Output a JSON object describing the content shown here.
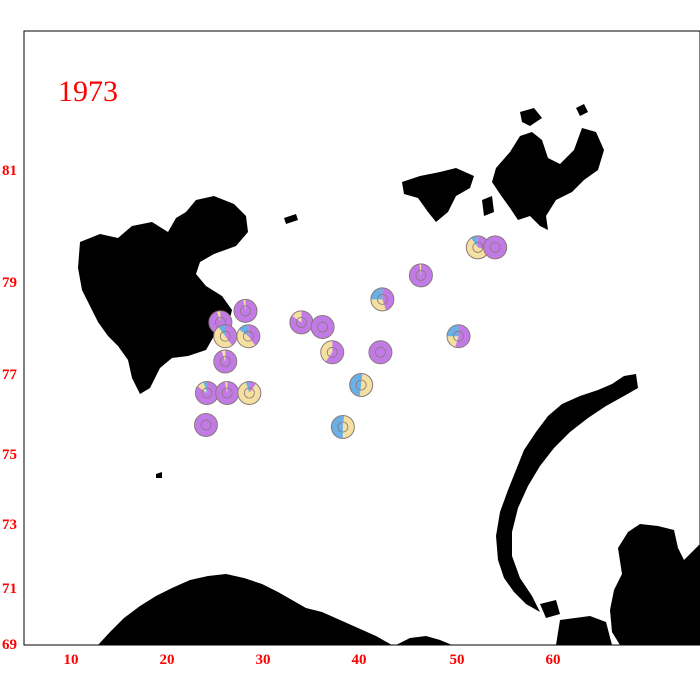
{
  "map": {
    "year": "1973",
    "colors": {
      "frame": "#000000",
      "land": "#000000",
      "label": "#ff0000",
      "purple": "#c27be6",
      "tan": "#f4e0a0",
      "blue": "#6ab0e6",
      "pie_outline": "#8a7a7a"
    },
    "x_ticks": [
      "10",
      "20",
      "30",
      "40",
      "50",
      "60"
    ],
    "y_ticks": [
      "81",
      "79",
      "77",
      "75",
      "73",
      "71",
      "69"
    ],
    "stations": [
      {
        "lon": 52.2,
        "lat": 79.6,
        "purple": 0.3,
        "tan": 0.6,
        "blue": 0.1
      },
      {
        "lon": 54.0,
        "lat": 79.6,
        "purple": 1.0,
        "tan": 0.0,
        "blue": 0.0
      },
      {
        "lon": 46.3,
        "lat": 79.1,
        "purple": 0.98,
        "tan": 0.02,
        "blue": 0.0
      },
      {
        "lon": 42.3,
        "lat": 78.6,
        "purple": 0.45,
        "tan": 0.3,
        "blue": 0.25
      },
      {
        "lon": 28.1,
        "lat": 78.35,
        "purple": 0.97,
        "tan": 0.03,
        "blue": 0.0
      },
      {
        "lon": 25.5,
        "lat": 78.1,
        "purple": 0.95,
        "tan": 0.05,
        "blue": 0.0
      },
      {
        "lon": 33.9,
        "lat": 78.1,
        "purple": 0.85,
        "tan": 0.15,
        "blue": 0.0
      },
      {
        "lon": 36.1,
        "lat": 78.0,
        "purple": 1.0,
        "tan": 0.0,
        "blue": 0.0
      },
      {
        "lon": 26.0,
        "lat": 77.8,
        "purple": 0.4,
        "tan": 0.5,
        "blue": 0.1
      },
      {
        "lon": 28.4,
        "lat": 77.8,
        "purple": 0.4,
        "tan": 0.45,
        "blue": 0.15
      },
      {
        "lon": 50.2,
        "lat": 77.8,
        "purple": 0.55,
        "tan": 0.2,
        "blue": 0.25
      },
      {
        "lon": 37.1,
        "lat": 77.45,
        "purple": 0.6,
        "tan": 0.4,
        "blue": 0.0
      },
      {
        "lon": 42.1,
        "lat": 77.45,
        "purple": 1.0,
        "tan": 0.0,
        "blue": 0.0
      },
      {
        "lon": 26.0,
        "lat": 77.25,
        "purple": 0.95,
        "tan": 0.05,
        "blue": 0.0
      },
      {
        "lon": 40.1,
        "lat": 76.7,
        "purple": 0.02,
        "tan": 0.5,
        "blue": 0.48
      },
      {
        "lon": 24.1,
        "lat": 76.5,
        "purple": 0.85,
        "tan": 0.1,
        "blue": 0.05
      },
      {
        "lon": 26.2,
        "lat": 76.5,
        "purple": 0.97,
        "tan": 0.03,
        "blue": 0.0
      },
      {
        "lon": 28.5,
        "lat": 76.5,
        "purple": 0.1,
        "tan": 0.85,
        "blue": 0.05
      },
      {
        "lon": 38.2,
        "lat": 75.65,
        "purple": 0.02,
        "tan": 0.48,
        "blue": 0.5
      },
      {
        "lon": 24.0,
        "lat": 75.7,
        "purple": 1.0,
        "tan": 0.0,
        "blue": 0.0
      }
    ]
  }
}
